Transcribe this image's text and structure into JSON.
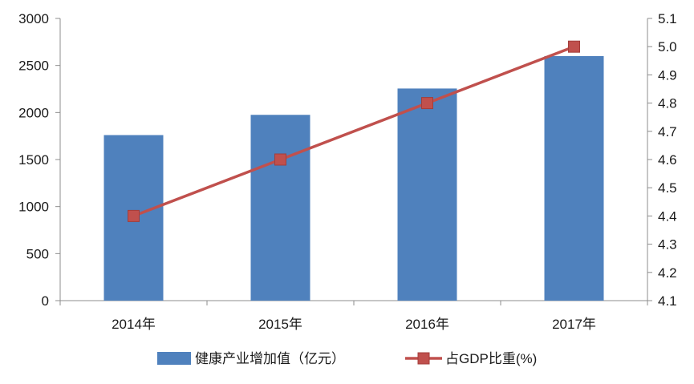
{
  "chart_data": {
    "type": "bar+line",
    "categories": [
      "2014年",
      "2015年",
      "2016年",
      "2017年"
    ],
    "series": [
      {
        "name": "健康产业增加值（亿元）",
        "type": "bar",
        "axis": "left",
        "color": "#4f81bd",
        "values": [
          1760,
          1975,
          2255,
          2600
        ]
      },
      {
        "name": "占GDP比重(%)",
        "type": "line",
        "axis": "right",
        "color": "#c0504d",
        "marker": "square",
        "values": [
          4.4,
          4.6,
          4.8,
          5.0
        ]
      }
    ],
    "y_left": {
      "min": 0,
      "max": 3000,
      "step": 500,
      "ticks": [
        "0",
        "500",
        "1000",
        "1500",
        "2000",
        "2500",
        "3000"
      ]
    },
    "y_right": {
      "min": 4.1,
      "max": 5.1,
      "step": 0.1,
      "ticks": [
        "4.1",
        "4.2",
        "4.3",
        "4.4",
        "4.5",
        "4.6",
        "4.7",
        "4.8",
        "4.9",
        "5.0",
        "5.1"
      ]
    },
    "grid": false,
    "legend": {
      "position": "bottom"
    }
  }
}
